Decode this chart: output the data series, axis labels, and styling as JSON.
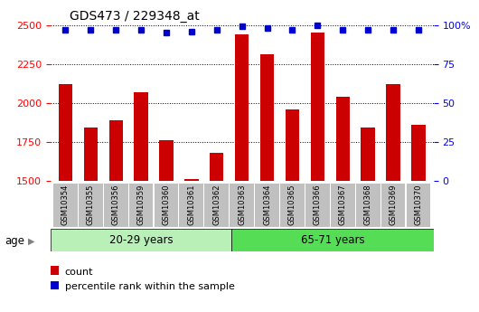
{
  "title": "GDS473 / 229348_at",
  "samples": [
    "GSM10354",
    "GSM10355",
    "GSM10356",
    "GSM10359",
    "GSM10360",
    "GSM10361",
    "GSM10362",
    "GSM10363",
    "GSM10364",
    "GSM10365",
    "GSM10366",
    "GSM10367",
    "GSM10368",
    "GSM10369",
    "GSM10370"
  ],
  "counts": [
    2120,
    1840,
    1890,
    2070,
    1760,
    1510,
    1680,
    2440,
    2310,
    1960,
    2450,
    2040,
    1840,
    2120,
    1860
  ],
  "percentiles": [
    97,
    97,
    97,
    97,
    95,
    96,
    97,
    99,
    98,
    97,
    100,
    97,
    97,
    97,
    97
  ],
  "group1_label": "20-29 years",
  "group2_label": "65-71 years",
  "group1_count": 7,
  "group2_count": 8,
  "ylim_left": [
    1500,
    2500
  ],
  "ylim_right": [
    0,
    100
  ],
  "yticks_left": [
    1500,
    1750,
    2000,
    2250,
    2500
  ],
  "yticks_right": [
    0,
    25,
    50,
    75,
    100
  ],
  "bar_color": "#cc0000",
  "dot_color": "#0000cc",
  "group1_bg": "#b8f0b8",
  "group2_bg": "#55dd55",
  "tick_area_bg": "#c0c0c0",
  "legend_count_label": "count",
  "legend_pct_label": "percentile rank within the sample",
  "bar_width": 0.55,
  "percentile_marker_size": 5,
  "age_label": "age"
}
